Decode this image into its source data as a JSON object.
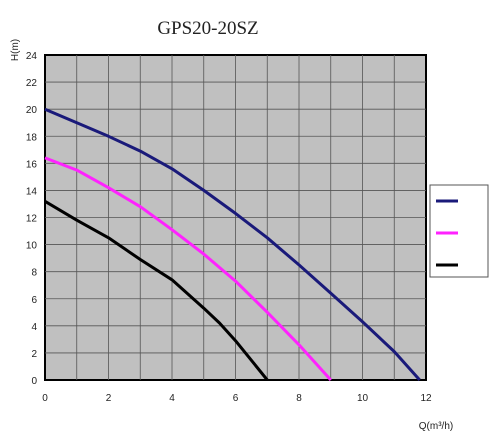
{
  "chart_data": {
    "type": "line",
    "title": "GPS20-20SZ",
    "xlabel": "Q(m³/h)",
    "ylabel": "H(m)",
    "xlim": [
      0,
      12
    ],
    "ylim": [
      0,
      24
    ],
    "x_ticks": [
      "0",
      "2",
      "4",
      "6",
      "8",
      "10",
      "12"
    ],
    "y_ticks": [
      "0",
      "2",
      "4",
      "6",
      "8",
      "10",
      "12",
      "14",
      "16",
      "18",
      "20",
      "22",
      "24"
    ],
    "grid": true,
    "plot_background": "#c0c0c0",
    "legend_position": "right",
    "series": [
      {
        "color": "#1a1a7a",
        "points": [
          [
            0,
            20.0
          ],
          [
            1,
            19.0
          ],
          [
            2,
            18.0
          ],
          [
            3,
            16.9
          ],
          [
            4,
            15.6
          ],
          [
            5,
            14.0
          ],
          [
            6,
            12.3
          ],
          [
            7,
            10.5
          ],
          [
            8,
            8.5
          ],
          [
            9,
            6.4
          ],
          [
            10,
            4.3
          ],
          [
            11,
            2.1
          ],
          [
            11.8,
            0
          ]
        ]
      },
      {
        "color": "#ff22ff",
        "points": [
          [
            0,
            16.4
          ],
          [
            1,
            15.5
          ],
          [
            2,
            14.2
          ],
          [
            3,
            12.8
          ],
          [
            4,
            11.1
          ],
          [
            5,
            9.3
          ],
          [
            6,
            7.3
          ],
          [
            7,
            5.0
          ],
          [
            8,
            2.6
          ],
          [
            9,
            0
          ]
        ]
      },
      {
        "color": "#000000",
        "points": [
          [
            0,
            13.2
          ],
          [
            1,
            11.8
          ],
          [
            2,
            10.5
          ],
          [
            3,
            8.9
          ],
          [
            4,
            7.4
          ],
          [
            5,
            5.3
          ],
          [
            5.5,
            4.2
          ],
          [
            6,
            2.9
          ],
          [
            7,
            0
          ]
        ]
      }
    ]
  }
}
